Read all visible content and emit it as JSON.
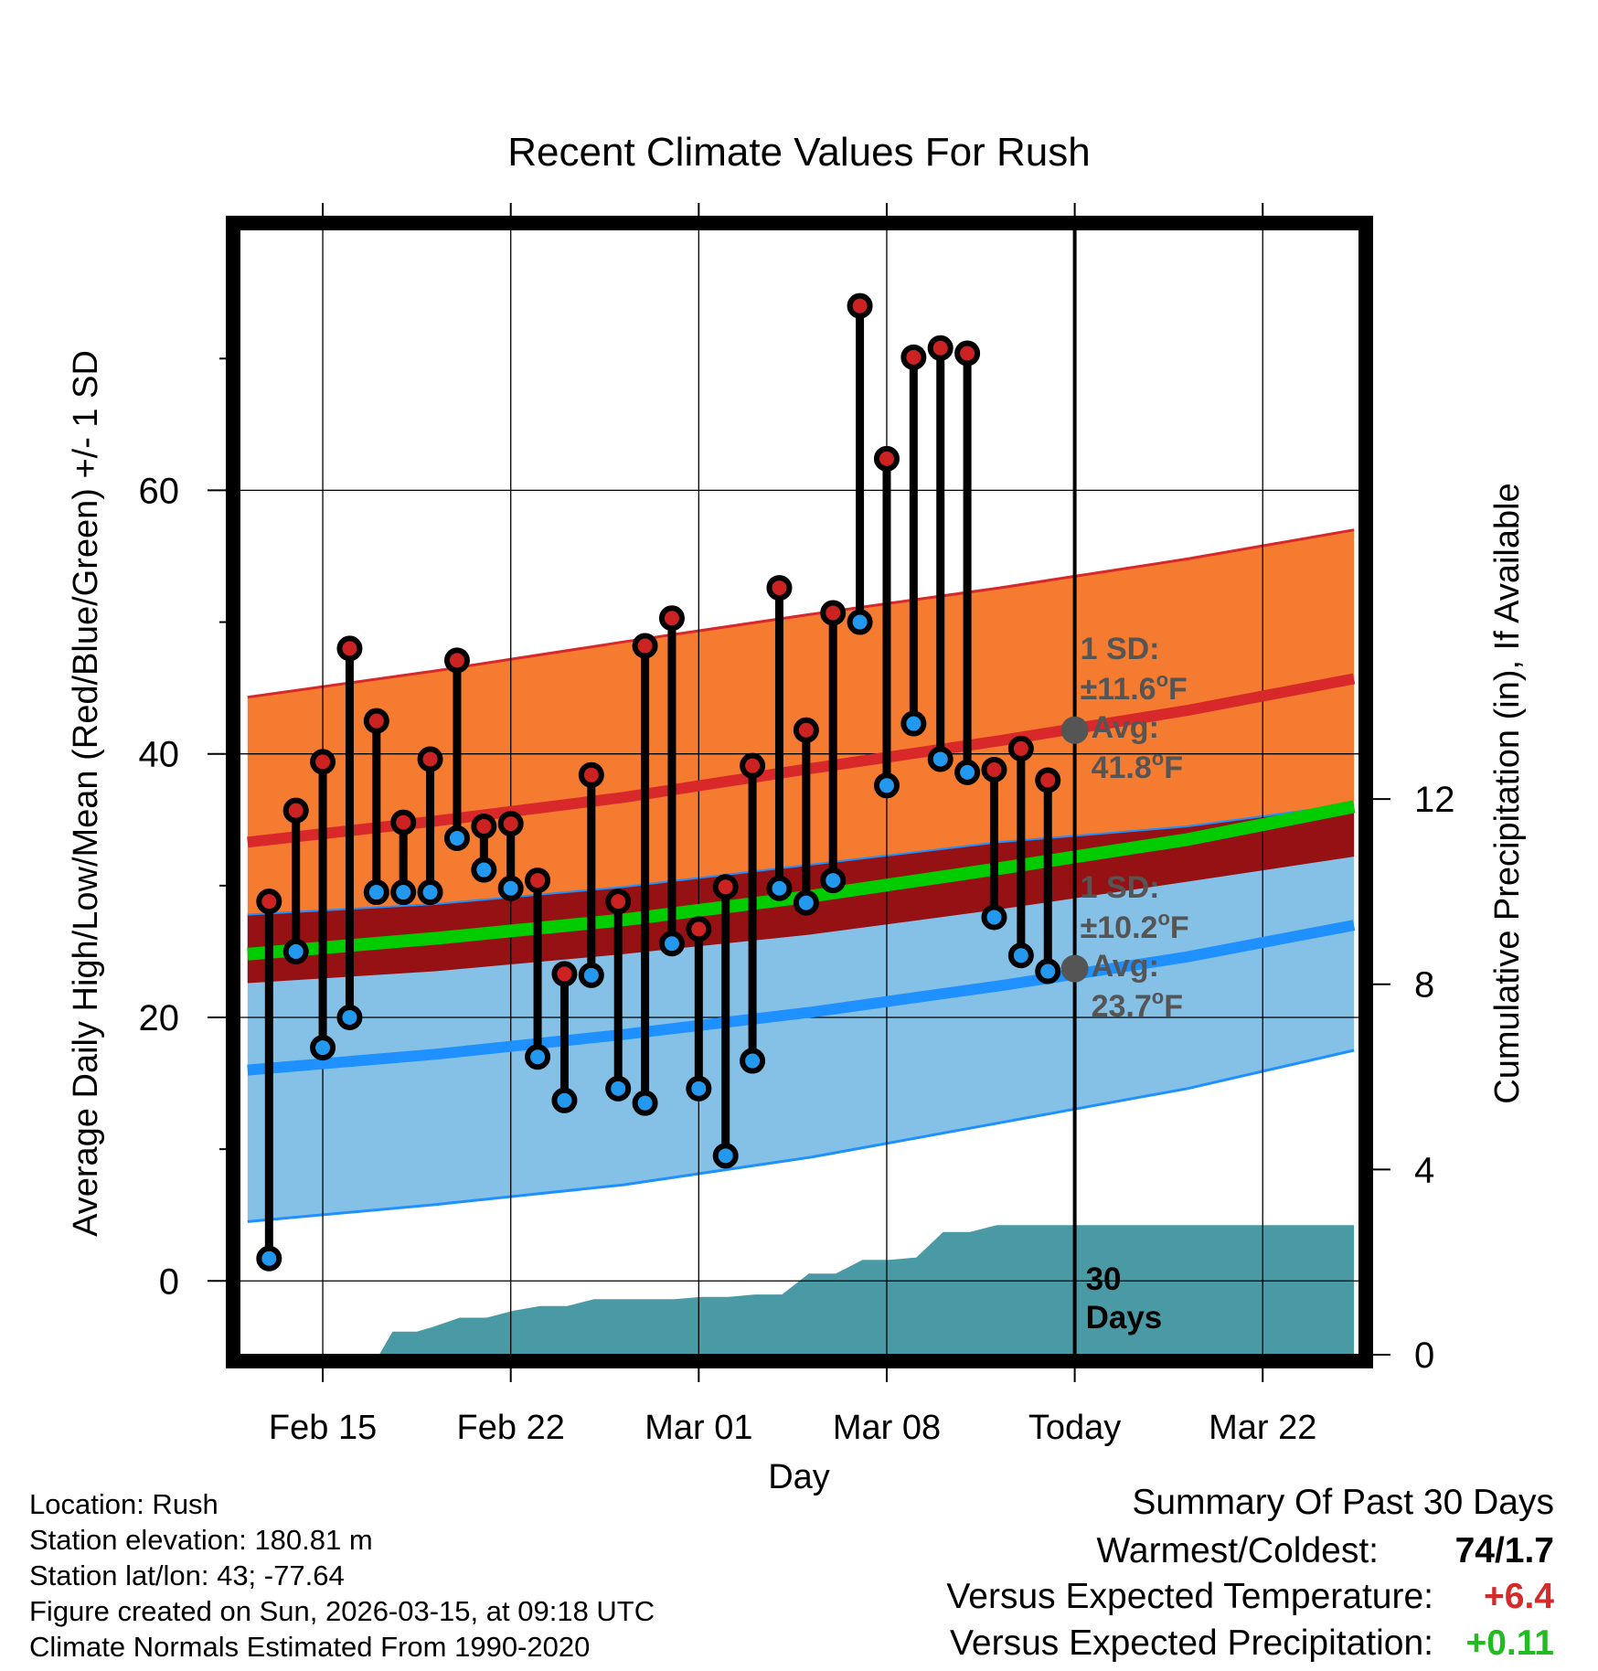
{
  "chart_data": {
    "type": "line",
    "title": "Recent Climate Values For Rush",
    "xlabel": "Day",
    "ylabel": "Average Daily High/Low/Mean (Red/Blue/Green) +/- 1 SD",
    "y2label": "Cumulative Precipitation (in), If Available",
    "xlim": [
      -3.1,
      38.6
    ],
    "ylim": [
      -5.6,
      79.8
    ],
    "y2lim": [
      0,
      24.3
    ],
    "yticks": [
      0,
      20,
      40,
      60
    ],
    "ytick_labels": [
      "0",
      "20",
      "40",
      "60"
    ],
    "y2ticks": [
      0,
      4,
      8,
      12
    ],
    "y2tick_labels": [
      "0",
      "4",
      "8",
      "12"
    ],
    "xtick_days": [
      0,
      7,
      14,
      21,
      28,
      35
    ],
    "xtick_labels": [
      "Feb 15",
      "Feb 22",
      "Mar 01",
      "Mar 08",
      "Today",
      "Mar 22"
    ],
    "today_day": 28,
    "today_marker": "30\nDays",
    "grid": true,
    "normals": {
      "x": [
        -2.8,
        4.2,
        11.2,
        18.2,
        25.2,
        32.2,
        38.4
      ],
      "high_avg": [
        33.3,
        34.9,
        36.7,
        38.9,
        41.0,
        43.3,
        45.7
      ],
      "high_upper": [
        44.3,
        46.3,
        48.5,
        50.6,
        52.6,
        54.8,
        57.0
      ],
      "high_lower": [
        27.8,
        28.6,
        29.9,
        31.6,
        33.3,
        34.5,
        36.2
      ],
      "low_avg": [
        16.0,
        17.2,
        18.7,
        20.4,
        22.4,
        24.6,
        27.0
      ],
      "low_upper": [
        27.8,
        28.6,
        29.9,
        31.6,
        33.3,
        34.5,
        36.2
      ],
      "low_lower": [
        4.5,
        5.8,
        7.3,
        9.4,
        12.0,
        14.6,
        17.5
      ],
      "mean_avg": [
        24.8,
        26.0,
        27.4,
        29.2,
        31.3,
        33.5,
        36.0
      ],
      "mean_band_upper": [
        27.8,
        28.6,
        29.9,
        31.6,
        33.3,
        34.5,
        36.2
      ],
      "mean_band_lower": [
        22.6,
        23.5,
        24.8,
        26.3,
        28.2,
        30.3,
        32.2
      ]
    },
    "series": [
      {
        "name": "Daily High",
        "color": "#cc2222",
        "x": [
          -2,
          -1,
          0,
          1,
          2,
          3,
          4,
          5,
          6,
          7,
          8,
          9,
          10,
          11,
          12,
          13,
          14,
          15,
          16,
          17,
          18,
          19,
          20,
          21,
          22,
          23,
          24,
          25,
          26,
          27
        ],
        "values": [
          28.8,
          35.7,
          39.4,
          48.0,
          42.5,
          34.8,
          39.6,
          47.1,
          34.5,
          34.7,
          30.4,
          23.3,
          38.4,
          28.8,
          48.2,
          50.3,
          26.7,
          29.9,
          39.1,
          52.6,
          41.8,
          50.7,
          74.0,
          62.4,
          70.1,
          70.8,
          70.4,
          38.8,
          40.4,
          38.0
        ]
      },
      {
        "name": "Daily Low",
        "color": "#2299ee",
        "x": [
          -2,
          -1,
          0,
          1,
          2,
          3,
          4,
          5,
          6,
          7,
          8,
          9,
          10,
          11,
          12,
          13,
          14,
          15,
          16,
          17,
          18,
          19,
          20,
          21,
          22,
          23,
          24,
          25,
          26,
          27
        ],
        "values": [
          1.7,
          25.0,
          17.7,
          20.0,
          29.5,
          29.5,
          29.5,
          33.6,
          31.2,
          29.8,
          17.0,
          13.7,
          23.2,
          14.6,
          13.5,
          25.6,
          14.6,
          9.5,
          16.7,
          29.8,
          28.7,
          30.4,
          50.0,
          37.6,
          42.3,
          39.6,
          38.6,
          27.6,
          24.7,
          23.5
        ]
      }
    ],
    "precipitation": {
      "x": [
        -2.5,
        2.1,
        2.6,
        3.5,
        4.1,
        5.1,
        6.1,
        7.1,
        8.1,
        9.1,
        10.1,
        11.1,
        12.1,
        13.1,
        14.1,
        15.1,
        16.1,
        17.1,
        18.1,
        19.1,
        20.1,
        21.1,
        22.1,
        23.1,
        24.1,
        25.1,
        26.1,
        27.1,
        28.0,
        38.4
      ],
      "values": [
        0.0,
        0.0,
        0.5,
        0.5,
        0.6,
        0.8,
        0.8,
        0.95,
        1.05,
        1.05,
        1.2,
        1.2,
        1.2,
        1.2,
        1.25,
        1.25,
        1.3,
        1.3,
        1.75,
        1.75,
        2.05,
        2.05,
        2.1,
        2.65,
        2.65,
        2.8,
        2.8,
        2.8,
        2.8,
        2.8
      ]
    },
    "annotations": {
      "high_sd_label": "1 SD:",
      "high_sd_value": "±11.6",
      "high_avg_label": "Avg:",
      "high_avg_value": "41.8",
      "high_avg": 41.8,
      "low_sd_label": "1 SD:",
      "low_sd_value": "±10.2",
      "low_avg_label": "Avg:",
      "low_avg_value": "23.7",
      "low_avg": 23.7,
      "deg_sup": "o",
      "unit": "F"
    },
    "colors": {
      "high_band": "#f47b30",
      "high_line": "#d8282a",
      "low_band": "#85c1e6",
      "low_line": "#1e90ff",
      "mean_band": "#961113",
      "mean_line": "#00cc00",
      "precip": "#4a9aa5",
      "annotation": "#555555",
      "warm_text": "#d42a2a",
      "wet_text": "#22bb22"
    }
  },
  "footer": {
    "location": "Location: Rush",
    "elevation": "Station elevation: 180.81 m",
    "latlon": "Station lat/lon: 43; -77.64",
    "created": "Figure created on Sun, 2026-03-15, at 09:18 UTC",
    "normals": "Climate Normals Estimated From 1990-2020"
  },
  "summary": {
    "heading": "Summary Of Past 30 Days",
    "warm_cold_label": "Warmest/Coldest:",
    "warm_cold_value": "74/1.7",
    "temp_label": "Versus Expected Temperature:",
    "temp_value": "+6.4",
    "precip_label": "Versus Expected Precipitation:",
    "precip_value": "+0.11"
  }
}
